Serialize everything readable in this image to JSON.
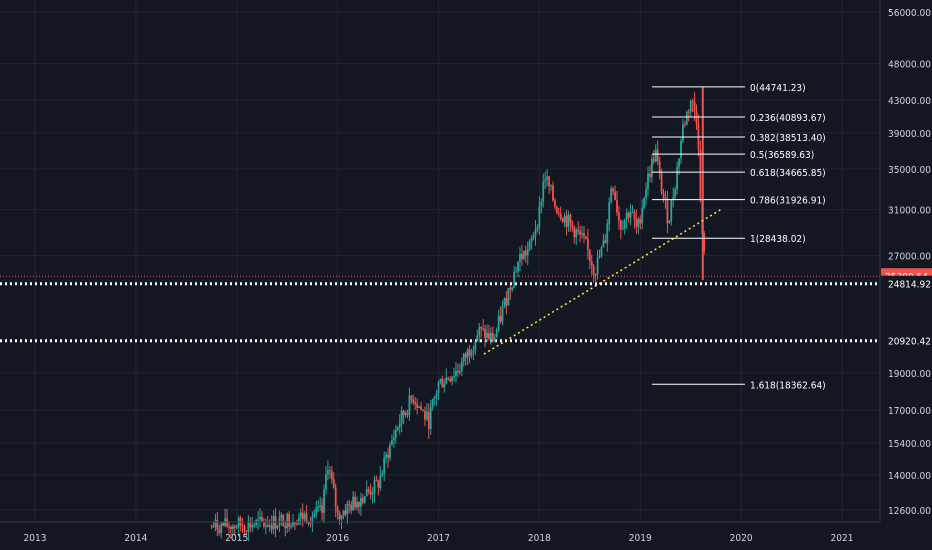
{
  "chart_data": {
    "type": "candlestick",
    "scale": "log",
    "grid": true,
    "xlabels": [
      "2013",
      "2014",
      "2015",
      "2016",
      "2017",
      "2018",
      "2019",
      "2020",
      "2021"
    ],
    "ylabels": [
      56000,
      48000,
      43000,
      39000,
      35000,
      31000,
      27000,
      19000,
      17000,
      15400,
      14000,
      12600
    ],
    "ylabel_text": [
      "56000.00",
      "48000.00",
      "43000.00",
      "39000.00",
      "35000.00",
      "31000.00",
      "27000.00",
      "19000.00",
      "17000.00",
      "15400.00",
      "14000.00",
      "12600.00"
    ],
    "price_labels": [
      {
        "value": 25380.54,
        "text": "25380.54",
        "color": "#ef5350",
        "highlight": true
      },
      {
        "value": 24814.92,
        "text": "24814.92",
        "color": "#ffffff",
        "highlight": false
      },
      {
        "value": 20920.42,
        "text": "20920.42",
        "color": "#ffffff",
        "highlight": false
      }
    ],
    "horizontal_lines": [
      {
        "value": 25380.54,
        "style": "dotted-red"
      },
      {
        "value": 24814.92,
        "style": "dotted-white"
      },
      {
        "value": 20920.42,
        "style": "dotted-white"
      }
    ],
    "fib_levels": [
      {
        "label": "0(44741.23)",
        "value": 44741.23
      },
      {
        "label": "0.236(40893.67)",
        "value": 40893.67
      },
      {
        "label": "0.382(38513.40)",
        "value": 38513.4
      },
      {
        "label": "0.5(36589.63)",
        "value": 36589.63
      },
      {
        "label": "0.618(34665.85)",
        "value": 34665.85
      },
      {
        "label": "0.786(31926.91)",
        "value": 31926.91
      },
      {
        "label": "1(28438.02)",
        "value": 28438.02
      },
      {
        "label": "1.618(18362.64)",
        "value": 18362.64
      }
    ],
    "trendline": {
      "from": {
        "x": 2017.45,
        "y": 20100
      },
      "to": {
        "x": 2019.8,
        "y": 31000
      },
      "color": "#ffeb3b"
    },
    "series_closes": [
      {
        "x": 2014.75,
        "y": 12000
      },
      {
        "x": 2015.3,
        "y": 12100
      },
      {
        "x": 2015.85,
        "y": 12500
      },
      {
        "x": 2015.9,
        "y": 14600
      },
      {
        "x": 2016.0,
        "y": 12400
      },
      {
        "x": 2016.2,
        "y": 13000
      },
      {
        "x": 2016.4,
        "y": 13600
      },
      {
        "x": 2016.5,
        "y": 15000
      },
      {
        "x": 2016.6,
        "y": 16300
      },
      {
        "x": 2016.75,
        "y": 17700
      },
      {
        "x": 2016.9,
        "y": 16400
      },
      {
        "x": 2017.0,
        "y": 18400
      },
      {
        "x": 2017.2,
        "y": 19200
      },
      {
        "x": 2017.4,
        "y": 21500
      },
      {
        "x": 2017.55,
        "y": 21000
      },
      {
        "x": 2017.7,
        "y": 24500
      },
      {
        "x": 2017.8,
        "y": 26800
      },
      {
        "x": 2017.9,
        "y": 27500
      },
      {
        "x": 2018.0,
        "y": 30800
      },
      {
        "x": 2018.05,
        "y": 34500
      },
      {
        "x": 2018.15,
        "y": 31500
      },
      {
        "x": 2018.3,
        "y": 29700
      },
      {
        "x": 2018.45,
        "y": 28000
      },
      {
        "x": 2018.55,
        "y": 25800
      },
      {
        "x": 2018.65,
        "y": 28200
      },
      {
        "x": 2018.72,
        "y": 34000
      },
      {
        "x": 2018.8,
        "y": 29500
      },
      {
        "x": 2018.9,
        "y": 31000
      },
      {
        "x": 2018.97,
        "y": 29000
      },
      {
        "x": 2019.05,
        "y": 33000
      },
      {
        "x": 2019.15,
        "y": 37000
      },
      {
        "x": 2019.2,
        "y": 33500
      },
      {
        "x": 2019.28,
        "y": 30000
      },
      {
        "x": 2019.35,
        "y": 33800
      },
      {
        "x": 2019.42,
        "y": 39500
      },
      {
        "x": 2019.5,
        "y": 43000
      },
      {
        "x": 2019.57,
        "y": 40500
      },
      {
        "x": 2019.6,
        "y": 30500
      },
      {
        "x": 2019.65,
        "y": 25400
      }
    ]
  }
}
